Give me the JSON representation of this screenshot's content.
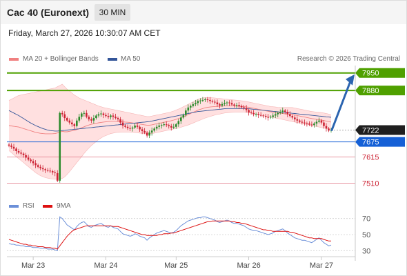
{
  "header": {
    "title": "Cac 40 (Euronext)",
    "timeframe": "30 MIN"
  },
  "datetime": "Friday, March 27, 2026 10:30:07 AM CET",
  "legend": {
    "ma20": "MA 20 + Bollinger Bands",
    "ma50": "MA 50",
    "copyright": "Research © 2026 Trading Central",
    "rsi": "RSI",
    "rsi_ma": "9MA"
  },
  "colors": {
    "up": "#2b8a2b",
    "down": "#cc2233",
    "resistance": "#4fa000",
    "support": "#e07080",
    "pivot": "#1560d6",
    "ma20": "#f08080",
    "ma50": "#335599",
    "band": "#ffd6d6",
    "rsi": "#6b8fd8",
    "rsi_ma": "#dd1111",
    "arrow": "#2b64b0"
  },
  "chart_data": [
    {
      "type": "candlestick",
      "x_ticks": [
        "Mar 23",
        "Mar 24",
        "Mar 25",
        "Mar 26",
        "Mar 27"
      ],
      "y_range": [
        7470,
        7985
      ],
      "levels": [
        {
          "value": 7950,
          "label": "7950",
          "kind": "resistance"
        },
        {
          "value": 7880,
          "label": "7880",
          "kind": "resistance"
        },
        {
          "value": 7722,
          "label": "7722",
          "kind": "last"
        },
        {
          "value": 7675,
          "label": "7675",
          "kind": "pivot"
        },
        {
          "value": 7615,
          "label": "7615",
          "kind": "support"
        },
        {
          "value": 7510,
          "label": "7510",
          "kind": "support"
        }
      ],
      "close": [
        7660,
        7655,
        7648,
        7638,
        7632,
        7628,
        7622,
        7612,
        7604,
        7598,
        7590,
        7582,
        7575,
        7570,
        7566,
        7562,
        7560,
        7558,
        7553,
        7550,
        7520,
        7790,
        7785,
        7770,
        7760,
        7752,
        7745,
        7738,
        7760,
        7775,
        7788,
        7790,
        7775,
        7765,
        7760,
        7770,
        7780,
        7785,
        7788,
        7782,
        7778,
        7774,
        7780,
        7775,
        7770,
        7765,
        7752,
        7740,
        7735,
        7730,
        7728,
        7732,
        7740,
        7735,
        7725,
        7718,
        7712,
        7700,
        7712,
        7720,
        7728,
        7735,
        7740,
        7742,
        7745,
        7742,
        7738,
        7732,
        7735,
        7745,
        7758,
        7772,
        7782,
        7800,
        7812,
        7818,
        7825,
        7830,
        7838,
        7840,
        7842,
        7845,
        7842,
        7838,
        7835,
        7832,
        7825,
        7820,
        7826,
        7830,
        7832,
        7830,
        7824,
        7820,
        7822,
        7818,
        7813,
        7810,
        7802,
        7792,
        7790,
        7785,
        7786,
        7782,
        7780,
        7778,
        7774,
        7772,
        7775,
        7780,
        7785,
        7790,
        7795,
        7800,
        7795,
        7785,
        7778,
        7772,
        7765,
        7760,
        7755,
        7752,
        7750,
        7748,
        7744,
        7742,
        7748,
        7755,
        7760,
        7752,
        7738,
        7728,
        7720,
        7722
      ],
      "bollinger_upper": [
        7840,
        7845,
        7850,
        7855,
        7860,
        7862,
        7864,
        7866,
        7868,
        7870,
        7872,
        7874,
        7876,
        7878,
        7880,
        7882,
        7884,
        7886,
        7888,
        7890,
        7895,
        7900,
        7905,
        7895,
        7885,
        7878,
        7870,
        7862,
        7856,
        7850,
        7846,
        7842,
        7838,
        7834,
        7830,
        7826,
        7822,
        7818,
        7815,
        7812,
        7810,
        7808,
        7806,
        7804,
        7802,
        7800,
        7798,
        7796,
        7794,
        7792,
        7790,
        7788,
        7786,
        7784,
        7782,
        7780,
        7778,
        7776,
        7776,
        7778,
        7780,
        7782,
        7784,
        7786,
        7788,
        7790,
        7792,
        7795,
        7798,
        7802,
        7806,
        7810,
        7815,
        7820,
        7825,
        7830,
        7835,
        7840,
        7845,
        7848,
        7850,
        7852,
        7852,
        7852,
        7851,
        7850,
        7849,
        7848,
        7847,
        7846,
        7845,
        7844,
        7843,
        7842,
        7841,
        7840,
        7839,
        7838,
        7836,
        7834,
        7832,
        7830,
        7828,
        7826,
        7824,
        7822,
        7820,
        7818,
        7816,
        7815,
        7814,
        7813,
        7812,
        7812,
        7812,
        7812,
        7812,
        7812,
        7810,
        7808,
        7806,
        7804,
        7802,
        7800,
        7798,
        7796,
        7795,
        7794,
        7793,
        7792,
        7790,
        7788,
        7786,
        7784
      ],
      "bollinger_lower": [
        7640,
        7632,
        7624,
        7616,
        7608,
        7600,
        7592,
        7584,
        7576,
        7568,
        7560,
        7552,
        7546,
        7540,
        7536,
        7532,
        7530,
        7528,
        7527,
        7526,
        7526,
        7527,
        7529,
        7535,
        7545,
        7556,
        7568,
        7580,
        7592,
        7604,
        7616,
        7628,
        7640,
        7650,
        7660,
        7668,
        7676,
        7684,
        7690,
        7696,
        7700,
        7704,
        7708,
        7710,
        7712,
        7713,
        7714,
        7714,
        7714,
        7714,
        7714,
        7713,
        7712,
        7711,
        7710,
        7709,
        7708,
        7707,
        7707,
        7708,
        7710,
        7712,
        7714,
        7716,
        7718,
        7720,
        7722,
        7724,
        7726,
        7728,
        7730,
        7733,
        7736,
        7739,
        7742,
        7746,
        7750,
        7754,
        7758,
        7762,
        7766,
        7770,
        7773,
        7776,
        7779,
        7782,
        7784,
        7786,
        7788,
        7790,
        7791,
        7792,
        7793,
        7794,
        7794,
        7794,
        7794,
        7794,
        7793,
        7792,
        7790,
        7788,
        7786,
        7784,
        7782,
        7780,
        7778,
        7776,
        7774,
        7772,
        7770,
        7768,
        7766,
        7764,
        7762,
        7760,
        7758,
        7756,
        7754,
        7752,
        7750,
        7748,
        7746,
        7744,
        7742,
        7740,
        7738,
        7736,
        7734,
        7732,
        7730,
        7728,
        7726,
        7724
      ],
      "ma50": [
        7800,
        7795,
        7790,
        7785,
        7780,
        7774,
        7768,
        7762,
        7756,
        7750,
        7745,
        7740,
        7736,
        7732,
        7728,
        7725,
        7722,
        7720,
        7719,
        7718,
        7718,
        7719,
        7720,
        7721,
        7722,
        7723,
        7724,
        7725,
        7726,
        7727,
        7728,
        7729,
        7730,
        7731,
        7732,
        7733,
        7734,
        7735,
        7736,
        7737,
        7738,
        7739,
        7740,
        7741,
        7742,
        7743,
        7744,
        7745,
        7746,
        7747,
        7748,
        7749,
        7750,
        7751,
        7752,
        7753,
        7754,
        7755,
        7756,
        7758,
        7760,
        7762,
        7764,
        7766,
        7768,
        7770,
        7772,
        7774,
        7776,
        7778,
        7780,
        7782,
        7784,
        7786,
        7788,
        7790,
        7792,
        7794,
        7796,
        7797,
        7798,
        7799,
        7800,
        7801,
        7802,
        7803,
        7804,
        7805,
        7806,
        7807,
        7808,
        7808,
        7808,
        7808,
        7808,
        7808,
        7808,
        7808,
        7808,
        7807,
        7806,
        7805,
        7804,
        7803,
        7802,
        7801,
        7800,
        7799,
        7798,
        7797,
        7796,
        7795,
        7794,
        7793,
        7792,
        7791,
        7790,
        7789,
        7788,
        7787,
        7786,
        7785,
        7784,
        7783,
        7782,
        7781,
        7780,
        7779,
        7778,
        7777,
        7776,
        7775,
        7774,
        7773
      ],
      "forecast_arrow": {
        "from": 7722,
        "to": 7950
      }
    },
    {
      "type": "line",
      "name": "RSI",
      "y_ticks": [
        "70",
        "50",
        "30"
      ],
      "y_range": [
        20,
        80
      ],
      "rsi": [
        39,
        38,
        38,
        37,
        37,
        36,
        36,
        35,
        35,
        35,
        34,
        34,
        34,
        33,
        33,
        33,
        32,
        32,
        32,
        31,
        30,
        72,
        70,
        66,
        62,
        60,
        58,
        56,
        60,
        63,
        65,
        66,
        63,
        60,
        59,
        61,
        62,
        63,
        64,
        62,
        60,
        59,
        61,
        59,
        58,
        57,
        54,
        51,
        50,
        49,
        48,
        49,
        51,
        50,
        48,
        47,
        46,
        43,
        46,
        48,
        50,
        52,
        53,
        54,
        55,
        54,
        53,
        52,
        53,
        55,
        58,
        61,
        63,
        65,
        67,
        68,
        69,
        70,
        71,
        71,
        72,
        72,
        71,
        70,
        69,
        68,
        66,
        65,
        66,
        67,
        68,
        67,
        65,
        64,
        64,
        63,
        62,
        61,
        59,
        57,
        56,
        55,
        55,
        54,
        53,
        52,
        51,
        50,
        51,
        52,
        54,
        55,
        56,
        57,
        55,
        52,
        50,
        48,
        46,
        45,
        44,
        43,
        43,
        42,
        41,
        40,
        42,
        44,
        46,
        43,
        40,
        38,
        36,
        37
      ],
      "rsi_ma": [
        44,
        43,
        42,
        41,
        40,
        39,
        38,
        38,
        37,
        37,
        36,
        36,
        35,
        35,
        35,
        34,
        34,
        34,
        33,
        33,
        32,
        36,
        40,
        44,
        48,
        51,
        54,
        56,
        57,
        58,
        59,
        60,
        61,
        61,
        61,
        61,
        61,
        61,
        61,
        61,
        61,
        61,
        61,
        60,
        60,
        60,
        59,
        58,
        57,
        56,
        55,
        54,
        53,
        52,
        51,
        50,
        50,
        49,
        49,
        49,
        49,
        49,
        50,
        50,
        51,
        51,
        51,
        52,
        52,
        53,
        54,
        55,
        56,
        57,
        58,
        59,
        60,
        61,
        62,
        63,
        64,
        65,
        66,
        66,
        67,
        67,
        67,
        67,
        67,
        67,
        67,
        67,
        66,
        66,
        65,
        65,
        64,
        64,
        63,
        62,
        61,
        60,
        59,
        58,
        57,
        56,
        56,
        55,
        55,
        54,
        54,
        54,
        54,
        54,
        54,
        54,
        53,
        53,
        52,
        51,
        50,
        49,
        48,
        47,
        46,
        46,
        45,
        45,
        45,
        45,
        44,
        43,
        42,
        42
      ]
    }
  ]
}
